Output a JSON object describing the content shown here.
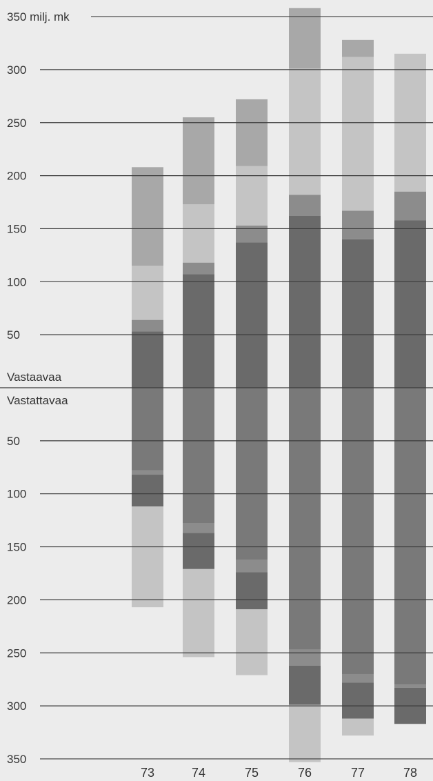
{
  "chart_data": {
    "type": "bar",
    "layout": "diverging-stacked",
    "unit_label": "milj. mk",
    "upper_label": "Vastaavaa",
    "lower_label": "Vastattavaa",
    "y_ticks_upper": [
      "350 milj. mk",
      "300",
      "250",
      "200",
      "150",
      "100",
      "50"
    ],
    "y_ticks_lower": [
      "50",
      "100",
      "150",
      "200",
      "250",
      "300",
      "350"
    ],
    "ylim_upper": [
      0,
      350
    ],
    "ylim_lower": [
      0,
      350
    ],
    "categories": [
      "73",
      "74",
      "75",
      "76",
      "77",
      "78"
    ],
    "colors": {
      "background": "#ececec",
      "gridline": "#3a3a3a",
      "darkest": "#6a6a6a",
      "dark": "#797979",
      "medium_dark": "#8c8c8c",
      "medium": "#a8a8a8",
      "light": "#c4c4c4"
    },
    "upper_series": [
      {
        "color_key": "darkest",
        "values": [
          53,
          107,
          137,
          162,
          140,
          158
        ]
      },
      {
        "color_key": "medium_dark",
        "values": [
          11,
          11,
          16,
          20,
          27,
          27
        ]
      },
      {
        "color_key": "light",
        "values": [
          51,
          55,
          56,
          119,
          145,
          130
        ]
      },
      {
        "color_key": "medium",
        "values": [
          93,
          82,
          63,
          57,
          16,
          0
        ]
      }
    ],
    "lower_series": [
      {
        "color_key": "dark",
        "values": [
          78,
          128,
          162,
          247,
          270,
          280
        ]
      },
      {
        "color_key": "medium_dark",
        "values": [
          4,
          9,
          12,
          15,
          8,
          3
        ]
      },
      {
        "color_key": "darkest",
        "values": [
          30,
          34,
          35,
          37,
          34,
          34
        ]
      },
      {
        "color_key": "light",
        "values": [
          95,
          83,
          62,
          54,
          16,
          0
        ]
      }
    ]
  }
}
